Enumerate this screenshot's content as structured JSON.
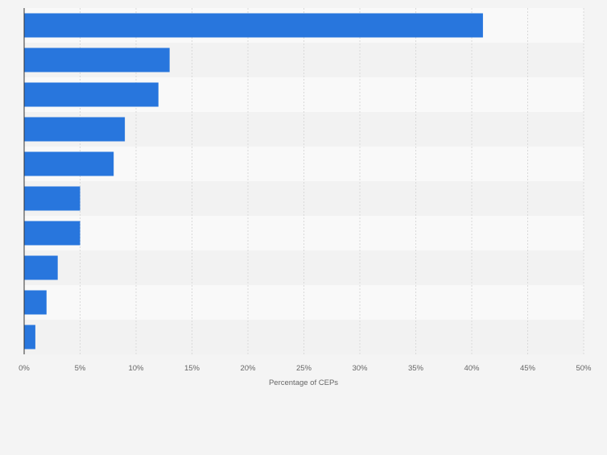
{
  "chart_data": {
    "type": "bar",
    "orientation": "horizontal",
    "categories": [
      "",
      "",
      "",
      "",
      "",
      "",
      "",
      "",
      "",
      ""
    ],
    "values": [
      41,
      13,
      12,
      9,
      8,
      5,
      5,
      3,
      2,
      1
    ],
    "xlabel": "Percentage of CEPs",
    "ylabel": "",
    "xlim": [
      0,
      50
    ],
    "xticks": [
      0,
      5,
      10,
      15,
      20,
      25,
      30,
      35,
      40,
      45,
      50
    ],
    "tick_suffix": "%",
    "grid": true,
    "legend": "none",
    "colors": {
      "bar": "#2876dd",
      "grid": "#d9d9d9",
      "band_light": "#f9f9f9",
      "band_dark": "#f2f2f2",
      "axis": "#333333",
      "tick_text": "#666666"
    }
  }
}
